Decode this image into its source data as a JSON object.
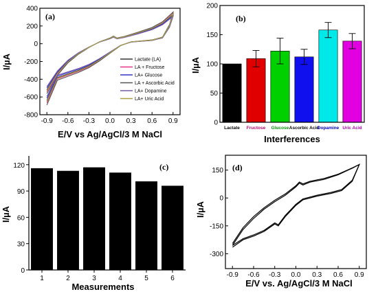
{
  "chart_data": [
    {
      "panel": "(a)",
      "type": "line",
      "xlabel": "E/V vs Ag/AgCl/3 M NaCl",
      "ylabel": "I/µA",
      "xlim": [
        -1.0,
        1.0
      ],
      "ylim": [
        -800,
        400
      ],
      "x_ticks": [
        "-0.9",
        "-0.6",
        "-0.3",
        "0.0",
        "0.3",
        "0.6",
        "0.9"
      ],
      "y_ticks": [
        "-800",
        "-600",
        "-400",
        "-200",
        "0",
        "200",
        "400"
      ],
      "legend_position": "bottom-right",
      "series": [
        {
          "name": "Lactate (LA)",
          "color": "#333333",
          "scale": 1.0
        },
        {
          "name": "LA + Fructose",
          "color": "#e8338c",
          "scale": 1.04
        },
        {
          "name": "LA+ Glucose",
          "color": "#3333cc",
          "scale": 0.96
        },
        {
          "name": "LA + Ascorbic Acid",
          "color": "#555555",
          "scale": 1.08
        },
        {
          "name": "LA+ Dopamine",
          "color": "#7a5aa8",
          "scale": 0.93
        },
        {
          "name": "LA+ Uric Acid",
          "color": "#a8a040",
          "scale": 1.02
        }
      ]
    },
    {
      "panel": "(b)",
      "type": "bar",
      "xlabel": "Interferences",
      "ylabel": "I/µA",
      "ylim": [
        0,
        200
      ],
      "y_ticks": [
        "0",
        "50",
        "100",
        "150",
        "200"
      ],
      "categories": [
        "Lactate",
        "Fructose",
        "Glucose",
        "Ascorbic Acid",
        "Dopamine",
        "Uric Acid"
      ],
      "values": [
        100,
        109,
        122,
        112,
        158,
        139
      ],
      "errors": [
        0,
        14,
        22,
        13,
        13,
        13
      ],
      "colors": [
        "#000000",
        "#e00000",
        "#00d000",
        "#1010ee",
        "#00e8e8",
        "#e000e0"
      ],
      "label_colors": [
        "#000000",
        "#c0006a",
        "#009900",
        "#000000",
        "#0000cc",
        "#aa00aa"
      ]
    },
    {
      "panel": "(c)",
      "type": "bar",
      "xlabel": "Measurements",
      "ylabel": "I/µA",
      "ylim": [
        0,
        130
      ],
      "y_ticks": [
        "0",
        "30",
        "60",
        "90",
        "120"
      ],
      "categories": [
        "1",
        "2",
        "3",
        "4",
        "5",
        "6"
      ],
      "values": [
        116,
        113,
        117,
        111,
        101,
        96
      ]
    },
    {
      "panel": "(d)",
      "type": "line",
      "xlabel": "E/V vs. Ag/AgCl/3 M NaCl",
      "ylabel": "I/µA",
      "xlim": [
        -1.0,
        1.0
      ],
      "ylim": [
        -380,
        230
      ],
      "x_ticks": [
        "-0.9",
        "-0.6",
        "-0.3",
        "0.0",
        "0.3",
        "0.6",
        "0.9"
      ],
      "y_ticks": [
        "-300",
        "-150",
        "0",
        "150"
      ],
      "series": [
        {
          "color": "#000000"
        }
      ]
    }
  ]
}
